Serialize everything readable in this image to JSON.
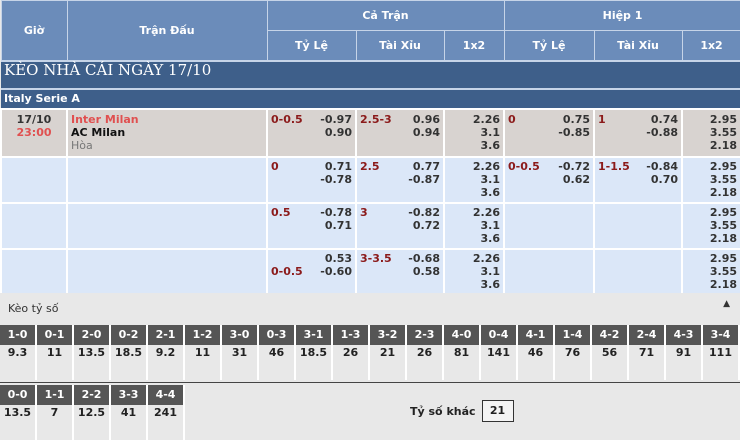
{
  "header": {
    "gio": "Giờ",
    "tran_dau": "Trận Đấu",
    "ca_tran": "Cả Trận",
    "hiep1": "Hiệp 1",
    "ty_le": "Tỷ Lệ",
    "tai_xiu": "Tài Xỉu",
    "x12": "1x2"
  },
  "title": "KÈO NHÀ CÁI NGÀY 17/10",
  "league": "Italy Serie A",
  "match": {
    "date": "17/10",
    "time": "23:00",
    "home": "Inter Milan",
    "away": "AC Milan",
    "draw": "Hòa"
  },
  "rows": [
    {
      "tl": "0-0.5",
      "tl1": "-0.97",
      "tl2": "0.90",
      "tx": "2.5-3",
      "tx1": "0.96",
      "tx2": "0.94",
      "x1": "2.26",
      "x2": "3.1",
      "x3": "3.6",
      "htl": "0",
      "htl1": "0.75",
      "htl2": "-0.85",
      "htx": "1",
      "htx1": "0.74",
      "htx2": "-0.88",
      "h1": "2.95",
      "h2": "3.55",
      "h3": "2.18"
    },
    {
      "tl": "0",
      "tl1": "0.71",
      "tl2": "-0.78",
      "tx": "2.5",
      "tx1": "0.77",
      "tx2": "-0.87",
      "x1": "2.26",
      "x2": "3.1",
      "x3": "3.6",
      "htl": "0-0.5",
      "htl1": "-0.72",
      "htl2": "0.62",
      "htx": "1-1.5",
      "htx1": "-0.84",
      "htx2": "0.70",
      "h1": "2.95",
      "h2": "3.55",
      "h3": "2.18"
    },
    {
      "tl": "0.5",
      "tl1": "-0.78",
      "tl2": "0.71",
      "tx": "3",
      "tx1": "-0.82",
      "tx2": "0.72",
      "x1": "2.26",
      "x2": "3.1",
      "x3": "3.6",
      "htl": "",
      "htl1": "",
      "htl2": "",
      "htx": "",
      "htx1": "",
      "htx2": "",
      "h1": "2.95",
      "h2": "3.55",
      "h3": "2.18"
    },
    {
      "tl": "0-0.5",
      "tl1": "0.53",
      "tl2": "-0.60",
      "tx": "3-3.5",
      "tx1": "-0.68",
      "tx2": "0.58",
      "x1": "2.26",
      "x2": "3.1",
      "x3": "3.6",
      "htl": "",
      "htl1": "",
      "htl2": "",
      "htx": "",
      "htx1": "",
      "htx2": "",
      "h1": "2.95",
      "h2": "3.55",
      "h3": "2.18"
    }
  ],
  "scores": {
    "title": "Kèo tỷ số",
    "row1": [
      [
        "1-0",
        "9.3"
      ],
      [
        "0-1",
        "11"
      ],
      [
        "2-0",
        "13.5"
      ],
      [
        "0-2",
        "18.5"
      ],
      [
        "2-1",
        "9.2"
      ],
      [
        "1-2",
        "11"
      ],
      [
        "3-0",
        "31"
      ],
      [
        "0-3",
        "46"
      ],
      [
        "3-1",
        "18.5"
      ],
      [
        "1-3",
        "26"
      ],
      [
        "3-2",
        "21"
      ],
      [
        "2-3",
        "26"
      ],
      [
        "4-0",
        "81"
      ],
      [
        "0-4",
        "141"
      ],
      [
        "4-1",
        "46"
      ],
      [
        "1-4",
        "76"
      ],
      [
        "4-2",
        "56"
      ],
      [
        "2-4",
        "71"
      ],
      [
        "4-3",
        "91"
      ],
      [
        "3-4",
        "111"
      ]
    ],
    "row2": [
      [
        "0-0",
        "13.5"
      ],
      [
        "1-1",
        "7"
      ],
      [
        "2-2",
        "12.5"
      ],
      [
        "3-3",
        "41"
      ],
      [
        "4-4",
        "241"
      ]
    ],
    "other_label": "Tỷ số khác",
    "other_value": "21"
  }
}
